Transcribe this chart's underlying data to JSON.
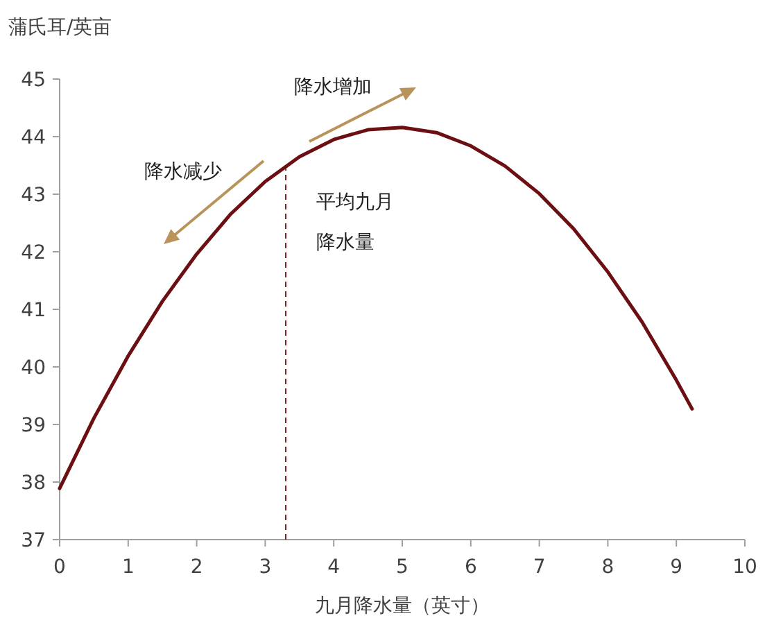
{
  "chart_data": {
    "type": "line",
    "ylabel": "蒲氏耳/英亩",
    "xlabel": "九月降水量（英寸）",
    "xlim": [
      0,
      10
    ],
    "xticks": [
      0,
      1,
      2,
      3,
      4,
      5,
      6,
      7,
      8,
      9,
      10
    ],
    "ylim": [
      37,
      45
    ],
    "yticks": [
      37,
      38,
      39,
      40,
      41,
      42,
      43,
      44,
      45
    ],
    "grid": false,
    "marker": "none",
    "line_style": "solid",
    "series": [
      {
        "color": "#6b0f12",
        "x": [
          0,
          0.5,
          1,
          1.5,
          2,
          2.5,
          3,
          3.5,
          4,
          4.5,
          5,
          5.5,
          6,
          6.5,
          7,
          7.5,
          8,
          8.5,
          9,
          9.23
        ],
        "values": [
          37.89,
          39.11,
          40.19,
          41.14,
          41.96,
          42.66,
          43.22,
          43.65,
          43.95,
          44.12,
          44.16,
          44.07,
          43.84,
          43.49,
          43.01,
          42.4,
          41.65,
          40.78,
          39.77,
          39.27
        ]
      }
    ],
    "ref_lines": [
      {
        "axis": "x",
        "value": 3.3,
        "label": "平均九月降水量",
        "color": "#7a1f22",
        "line_style": "dashed"
      }
    ],
    "annotations": [
      "降水增加",
      "降水减少"
    ]
  }
}
